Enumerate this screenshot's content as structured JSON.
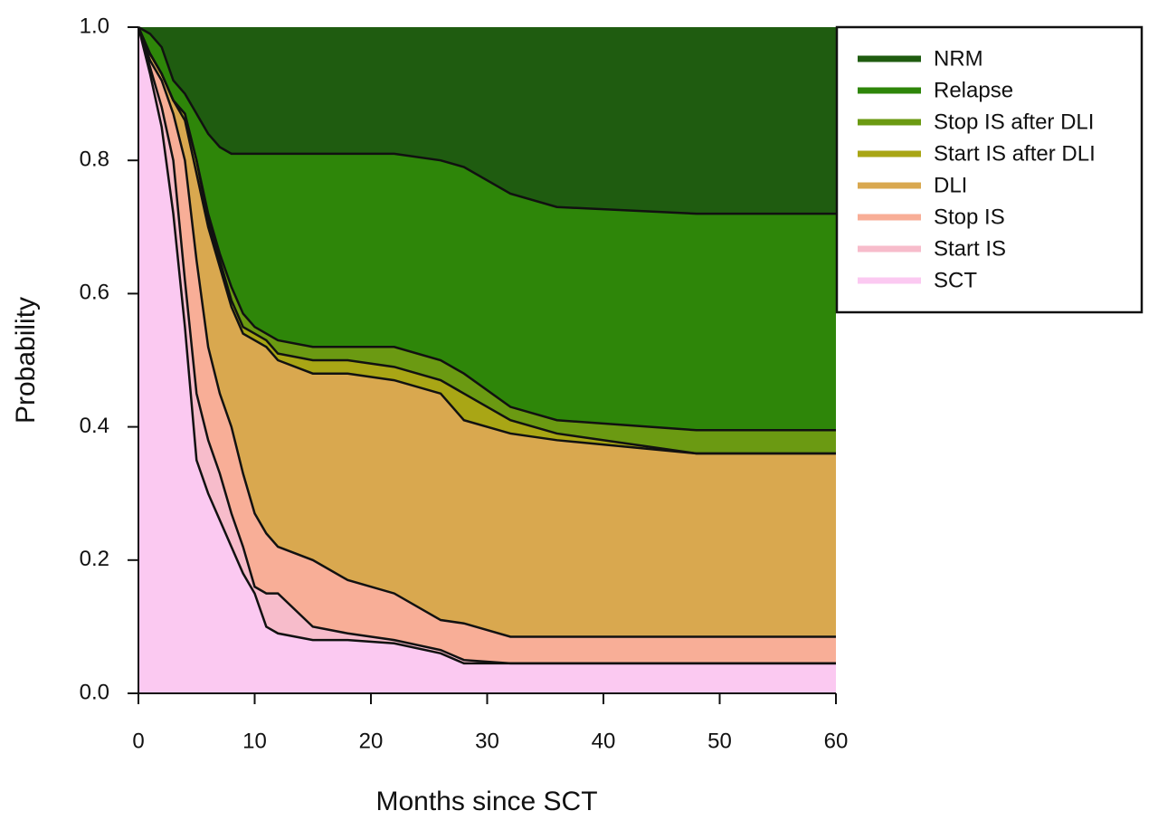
{
  "chart_data": {
    "type": "stacked-area",
    "xlabel": "Months since SCT",
    "ylabel": "Probability",
    "x": [
      0,
      1,
      2,
      3,
      4,
      5,
      6,
      7,
      8,
      9,
      10,
      11,
      12,
      15,
      18,
      22,
      26,
      28,
      32,
      36,
      48,
      60
    ],
    "xlim": [
      0,
      60
    ],
    "xticks": [
      0,
      10,
      20,
      30,
      40,
      50,
      60
    ],
    "ylim": [
      0,
      1
    ],
    "yticks": [
      {
        "value": 0,
        "label": "0.0"
      },
      0.2,
      0.4,
      0.6,
      0.8,
      {
        "value": 1,
        "label": "1.0"
      }
    ],
    "legend": "upper right",
    "series": [
      {
        "name": "NRM",
        "color": "#1f5c10",
        "values": [
          0,
          0.01,
          0.03,
          0.08,
          0.1,
          0.13,
          0.16,
          0.18,
          0.19,
          0.19,
          0.19,
          0.19,
          0.19,
          0.19,
          0.19,
          0.19,
          0.2,
          0.21,
          0.25,
          0.27,
          0.28,
          0.28
        ]
      },
      {
        "name": "Relapse",
        "color": "#2e8609",
        "values": [
          0,
          0.03,
          0.04,
          0.03,
          0.03,
          0.07,
          0.12,
          0.16,
          0.2,
          0.24,
          0.26,
          0.27,
          0.28,
          0.29,
          0.29,
          0.29,
          0.3,
          0.31,
          0.32,
          0.32,
          0.325,
          0.325
        ]
      },
      {
        "name": "Stop IS after DLI",
        "color": "#6b9a12",
        "values": [
          0,
          0,
          0,
          0,
          0,
          0,
          0.01,
          0.01,
          0.02,
          0.02,
          0.01,
          0.01,
          0.02,
          0.02,
          0.02,
          0.03,
          0.03,
          0.03,
          0.02,
          0.02,
          0.035,
          0.035
        ]
      },
      {
        "name": "Start IS after DLI",
        "color": "#a9a615",
        "values": [
          0,
          0,
          0,
          0,
          0.01,
          0.02,
          0.01,
          0.01,
          0.01,
          0.01,
          0.01,
          0.01,
          0.01,
          0.02,
          0.02,
          0.02,
          0.02,
          0.04,
          0.02,
          0.01,
          0,
          0
        ]
      },
      {
        "name": "DLI",
        "color": "#d9a84f",
        "values": [
          0,
          0.01,
          0.01,
          0.02,
          0.06,
          0.13,
          0.18,
          0.19,
          0.18,
          0.21,
          0.26,
          0.28,
          0.28,
          0.28,
          0.31,
          0.32,
          0.34,
          0.305,
          0.305,
          0.295,
          0.275,
          0.275
        ]
      },
      {
        "name": "Stop IS",
        "color": "#f8ae97",
        "values": [
          0,
          0.01,
          0.04,
          0.07,
          0.18,
          0.2,
          0.14,
          0.12,
          0.13,
          0.11,
          0.11,
          0.09,
          0.07,
          0.1,
          0.08,
          0.07,
          0.045,
          0.055,
          0.04,
          0.04,
          0.04,
          0.04
        ]
      },
      {
        "name": "Start IS",
        "color": "#f7bccb",
        "values": [
          0,
          0.01,
          0.03,
          0.08,
          0.07,
          0.1,
          0.08,
          0.07,
          0.05,
          0.04,
          0.01,
          0.05,
          0.06,
          0.02,
          0.01,
          0.005,
          0.005,
          0.005,
          0,
          0,
          0,
          0
        ]
      },
      {
        "name": "SCT",
        "color": "#fbc9f1",
        "values": [
          1,
          0.93,
          0.85,
          0.72,
          0.55,
          0.35,
          0.3,
          0.26,
          0.22,
          0.18,
          0.15,
          0.1,
          0.09,
          0.08,
          0.08,
          0.075,
          0.06,
          0.045,
          0.045,
          0.045,
          0.045,
          0.045
        ]
      }
    ]
  }
}
